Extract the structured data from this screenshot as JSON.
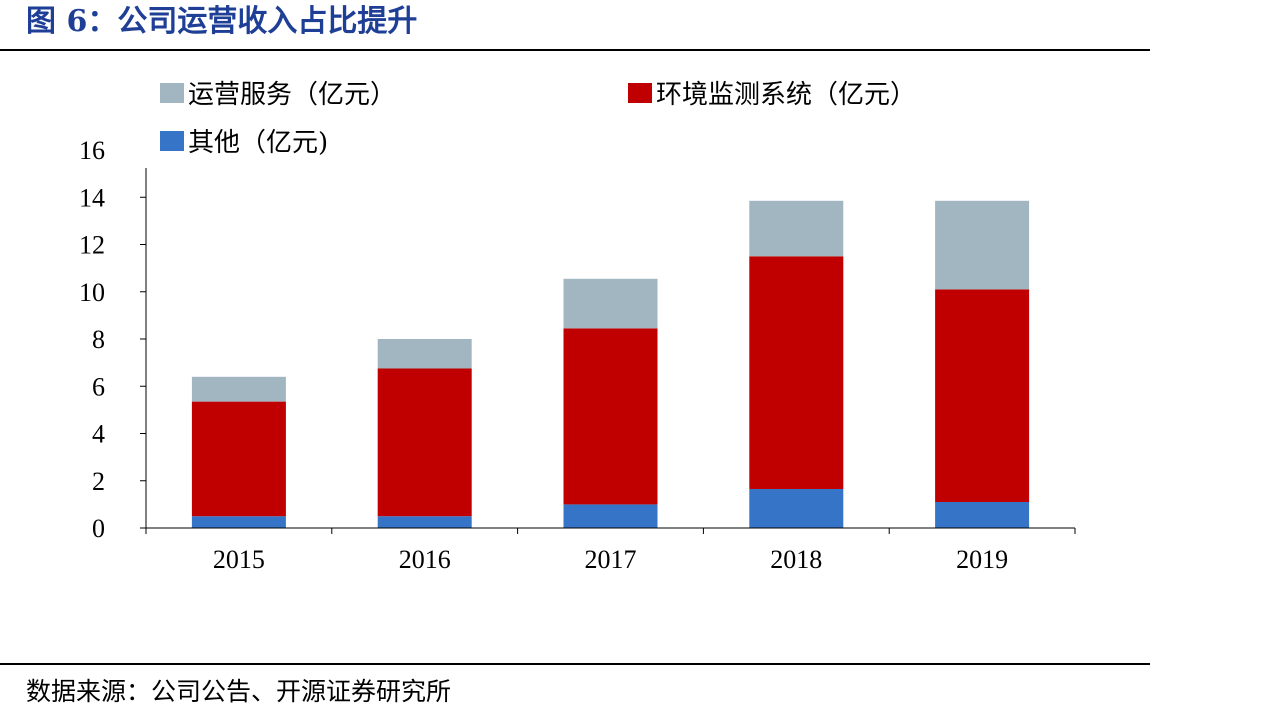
{
  "figure": {
    "title": "图 6：公司运营收入占比提升",
    "source": "数据来源：公司公告、开源证券研究所"
  },
  "chart_data": {
    "type": "bar",
    "stacked": true,
    "categories": [
      "2015",
      "2016",
      "2017",
      "2018",
      "2019"
    ],
    "series": [
      {
        "name": "其他（亿元)",
        "color": "#3674c7",
        "values": [
          0.5,
          0.5,
          1.0,
          1.65,
          1.1
        ]
      },
      {
        "name": "环境监测系统（亿元）",
        "color": "#c00000",
        "values": [
          4.85,
          6.25,
          7.45,
          9.85,
          9.0
        ]
      },
      {
        "name": "运营服务（亿元）",
        "color": "#a2b6c2",
        "values": [
          1.05,
          1.25,
          2.1,
          2.35,
          3.75
        ]
      }
    ],
    "ylim": [
      0,
      16
    ],
    "yticks": [
      0,
      2,
      4,
      6,
      8,
      10,
      12,
      14,
      16
    ],
    "grid": false,
    "legend": "top-left"
  }
}
